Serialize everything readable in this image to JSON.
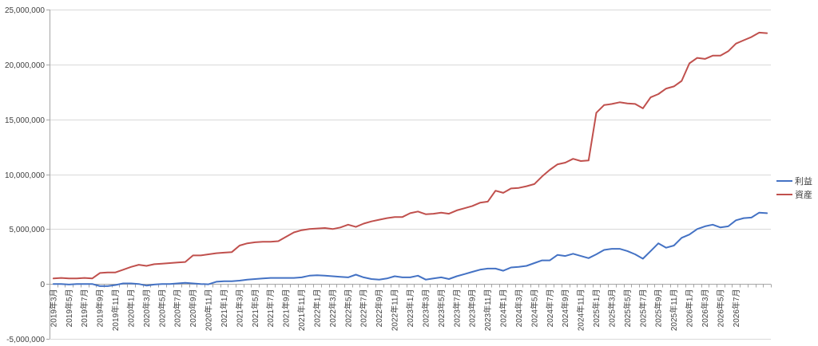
{
  "chart_data": {
    "type": "line",
    "title": "",
    "xlabel": "",
    "ylabel": "",
    "ylim": [
      -5000000,
      25000000
    ],
    "y_ticks": [
      -5000000,
      0,
      5000000,
      10000000,
      15000000,
      20000000,
      25000000
    ],
    "y_tick_labels": [
      "-5,000,000",
      "0",
      "5,000,000",
      "10,000,000",
      "15,000,000",
      "20,000,000",
      "25,000,000"
    ],
    "grid": "horizontal",
    "legend_position": "right",
    "x_start": "2019-03",
    "x_tick_labels": [
      "2019年3月",
      "2019年5月",
      "2019年7月",
      "2019年9月",
      "2019年11月",
      "2020年1月",
      "2020年3月",
      "2020年5月",
      "2020年7月",
      "2020年9月",
      "2020年11月",
      "2021年1月",
      "2021年3月",
      "2021年5月",
      "2021年7月",
      "2021年9月",
      "2021年11月",
      "2022年1月",
      "2022年3月",
      "2022年5月",
      "2022年7月",
      "2022年9月",
      "2022年11月",
      "2023年1月",
      "2023年3月",
      "2023年5月",
      "2023年7月",
      "2023年9月",
      "2023年11月",
      "2024年1月",
      "2024年3月",
      "2024年5月",
      "2024年7月",
      "2024年9月",
      "2024年11月",
      "2025年1月",
      "2025年3月",
      "2025年5月",
      "2025年7月",
      "2025年9月",
      "2025年11月",
      "2026年1月",
      "2026年3月",
      "2026年5月",
      "2026年7月"
    ],
    "series": [
      {
        "name": "利益",
        "color": "#4472C4",
        "values": [
          0,
          0,
          -50000,
          0,
          0,
          0,
          -200000,
          -200000,
          -100000,
          50000,
          50000,
          0,
          -150000,
          -50000,
          0,
          0,
          50000,
          100000,
          50000,
          0,
          -30000,
          200000,
          250000,
          250000,
          300000,
          400000,
          450000,
          500000,
          550000,
          550000,
          550000,
          550000,
          600000,
          750000,
          800000,
          750000,
          700000,
          650000,
          600000,
          850000,
          600000,
          450000,
          400000,
          500000,
          700000,
          600000,
          600000,
          750000,
          400000,
          500000,
          600000,
          450000,
          700000,
          900000,
          1100000,
          1300000,
          1400000,
          1400000,
          1200000,
          1500000,
          1550000,
          1650000,
          1900000,
          2150000,
          2150000,
          2650000,
          2550000,
          2750000,
          2550000,
          2350000,
          2700000,
          3100000,
          3200000,
          3200000,
          3000000,
          2700000,
          2300000,
          3000000,
          3700000,
          3300000,
          3500000,
          4200000,
          4500000,
          5000000,
          5250000,
          5400000,
          5150000,
          5250000,
          5800000,
          6000000,
          6050000,
          6500000,
          6450000
        ]
      },
      {
        "name": "資産",
        "color": "#C0504D",
        "values": [
          500000,
          550000,
          500000,
          500000,
          550000,
          500000,
          1000000,
          1050000,
          1050000,
          1300000,
          1550000,
          1750000,
          1650000,
          1800000,
          1850000,
          1900000,
          1950000,
          2000000,
          2600000,
          2600000,
          2700000,
          2800000,
          2850000,
          2900000,
          3500000,
          3700000,
          3800000,
          3850000,
          3850000,
          3900000,
          4300000,
          4700000,
          4900000,
          5000000,
          5050000,
          5100000,
          5000000,
          5150000,
          5400000,
          5200000,
          5500000,
          5700000,
          5850000,
          6000000,
          6100000,
          6100000,
          6450000,
          6600000,
          6350000,
          6400000,
          6500000,
          6400000,
          6700000,
          6900000,
          7100000,
          7400000,
          7500000,
          8500000,
          8300000,
          8700000,
          8750000,
          8900000,
          9100000,
          9800000,
          10400000,
          10900000,
          11050000,
          11400000,
          11200000,
          11250000,
          15600000,
          16300000,
          16400000,
          16550000,
          16450000,
          16400000,
          16000000,
          17000000,
          17300000,
          17800000,
          18000000,
          18500000,
          20100000,
          20600000,
          20500000,
          20800000,
          20800000,
          21200000,
          21900000,
          22200000,
          22500000,
          22900000,
          22850000
        ]
      }
    ]
  }
}
